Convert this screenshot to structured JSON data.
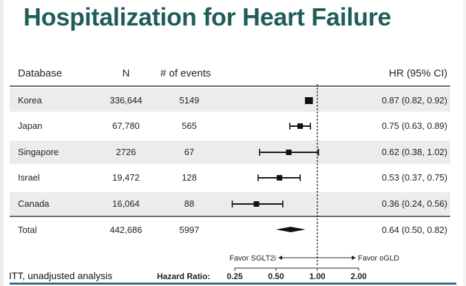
{
  "title": "Hospitalization for Heart Failure",
  "columns": {
    "database": "Database",
    "n": "N",
    "events": "# of events",
    "hr": "HR (95% CI)"
  },
  "footnote": "ITT, unadjusted analysis",
  "axis": {
    "label": "Hazard Ratio:",
    "ticks": [
      "0.25",
      "0.50",
      "1.00",
      "2.00"
    ],
    "favor_left": "Favor SGLT2i",
    "favor_right": "Favor oGLD"
  },
  "chart_data": {
    "type": "forest",
    "scale": "log",
    "xlim": [
      0.25,
      2.0
    ],
    "reference_line": 1.0,
    "rows": [
      {
        "label": "Korea",
        "n": "336,644",
        "events": "5149",
        "hr": 0.87,
        "lo": 0.82,
        "hi": 0.92,
        "hr_text": "0.87 (0.82, 0.92)"
      },
      {
        "label": "Japan",
        "n": "67,780",
        "events": "565",
        "hr": 0.75,
        "lo": 0.63,
        "hi": 0.89,
        "hr_text": "0.75 (0.63, 0.89)"
      },
      {
        "label": "Singapore",
        "n": "2726",
        "events": "67",
        "hr": 0.62,
        "lo": 0.38,
        "hi": 1.02,
        "hr_text": "0.62 (0.38, 1.02)"
      },
      {
        "label": "Israel",
        "n": "19,472",
        "events": "128",
        "hr": 0.53,
        "lo": 0.37,
        "hi": 0.75,
        "hr_text": "0.53 (0.37, 0.75)"
      },
      {
        "label": "Canada",
        "n": "16,064",
        "events": "88",
        "hr": 0.36,
        "lo": 0.24,
        "hi": 0.56,
        "hr_text": "0.36 (0.24, 0.56)"
      }
    ],
    "total": {
      "label": "Total",
      "n": "442,686",
      "events": "5997",
      "hr": 0.64,
      "lo": 0.5,
      "hi": 0.82,
      "hr_text": "0.64 (0.50, 0.82)"
    }
  }
}
